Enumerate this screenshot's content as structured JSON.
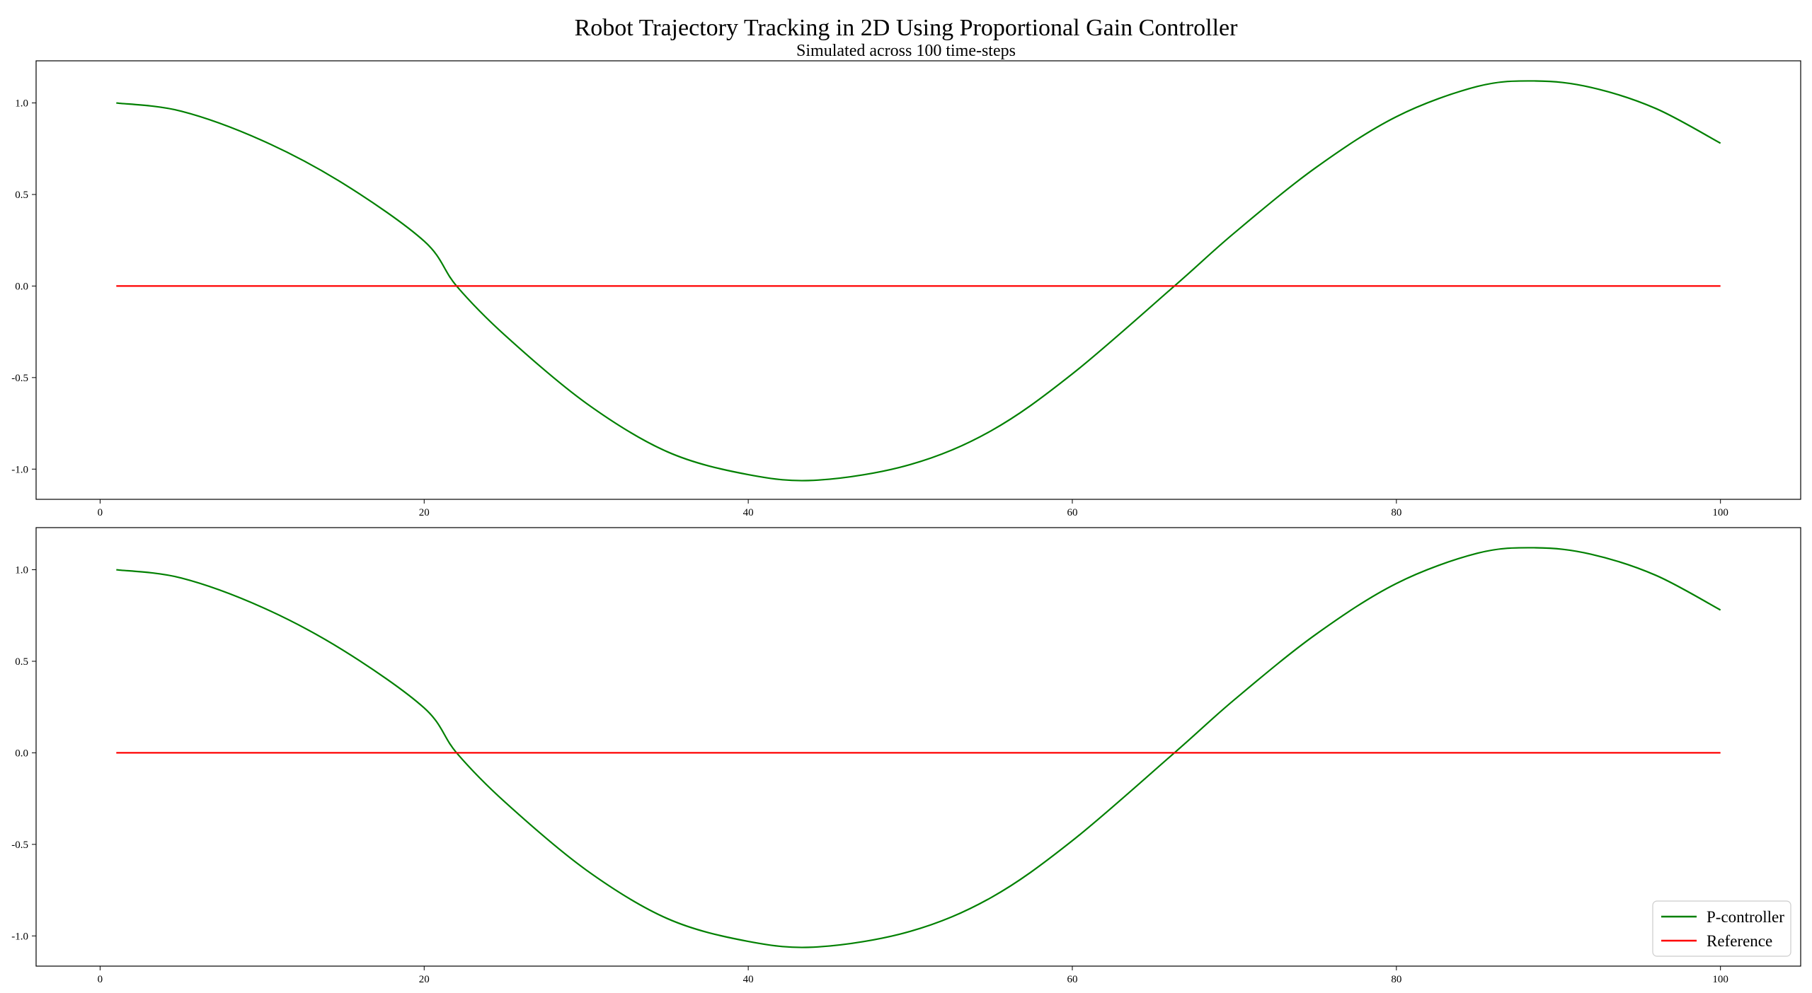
{
  "chart_data": {
    "title": "Robot Trajectory Tracking in 2D Using Proportional Gain Controller",
    "subtitle": "Simulated across 100 time-steps",
    "panels": [
      {
        "type": "line",
        "xlim": [
          -3.95,
          104.95
        ],
        "ylim": [
          -1.165,
          1.23
        ],
        "x_ticks": [
          "0",
          "20",
          "40",
          "60",
          "80",
          "100"
        ],
        "y_ticks": [
          "1.0",
          "0.5",
          "0.0",
          "-0.5",
          "-1.0"
        ],
        "legend": false
      },
      {
        "type": "line",
        "xlim": [
          -3.95,
          104.95
        ],
        "ylim": [
          -1.165,
          1.23
        ],
        "x_ticks": [
          "0",
          "20",
          "40",
          "60",
          "80",
          "100"
        ],
        "y_ticks": [
          "1.0",
          "0.5",
          "0.0",
          "-0.5",
          "-1.0"
        ],
        "legend": true,
        "legend_position": "lower-right"
      }
    ],
    "series": [
      {
        "name": "P-controller",
        "color": "#008000",
        "x": [
          1,
          5,
          10,
          15,
          20,
          22,
          25,
          30,
          35,
          40,
          44.3,
          50,
          55,
          60,
          66.3,
          70,
          75,
          80,
          85,
          88.6,
          92,
          96,
          100
        ],
        "y": [
          1.0,
          0.955,
          0.795,
          0.56,
          0.245,
          0.0,
          -0.27,
          -0.64,
          -0.905,
          -1.03,
          -1.06,
          -0.975,
          -0.79,
          -0.48,
          0.0,
          0.29,
          0.645,
          0.925,
          1.09,
          1.12,
          1.085,
          0.97,
          0.78
        ]
      },
      {
        "name": "Reference",
        "color": "#ff0000",
        "x": [
          1,
          100
        ],
        "y": [
          0.0,
          0.0
        ]
      }
    ]
  }
}
